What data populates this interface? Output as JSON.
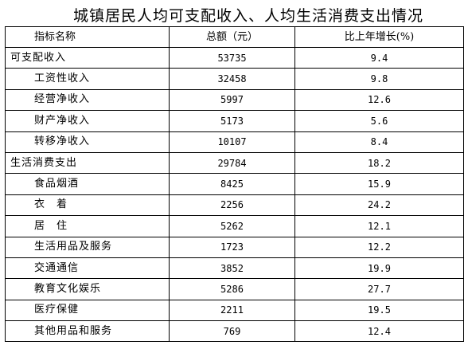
{
  "title": "城镇居民人均可支配收入、人均生活消费支出情况",
  "headers": {
    "name": "指标名称",
    "amount": "总额（元）",
    "growth": "比上年增长(%)"
  },
  "rows": [
    {
      "name": "可支配收入",
      "amount": "53735",
      "growth": "9.4"
    },
    {
      "name": "工资性收入",
      "amount": "32458",
      "growth": "9.8"
    },
    {
      "name": "经营净收入",
      "amount": "5997",
      "growth": "12.6"
    },
    {
      "name": "财产净收入",
      "amount": "5173",
      "growth": "5.6"
    },
    {
      "name": "转移净收入",
      "amount": "10107",
      "growth": "8.4"
    },
    {
      "name": "生活消费支出",
      "amount": "29784",
      "growth": "18.2"
    },
    {
      "name": "食品烟酒",
      "amount": "8425",
      "growth": "15.9"
    },
    {
      "name": "衣　着",
      "amount": "2256",
      "growth": "24.2"
    },
    {
      "name": "居　住",
      "amount": "5262",
      "growth": "12.1"
    },
    {
      "name": "生活用品及服务",
      "amount": "1723",
      "growth": "12.2"
    },
    {
      "name": "交通通信",
      "amount": "3852",
      "growth": "19.9"
    },
    {
      "name": "教育文化娱乐",
      "amount": "5286",
      "growth": "27.7"
    },
    {
      "name": "医疗保健",
      "amount": "2211",
      "growth": "19.5"
    },
    {
      "name": "其他用品和服务",
      "amount": "769",
      "growth": "12.4"
    }
  ]
}
